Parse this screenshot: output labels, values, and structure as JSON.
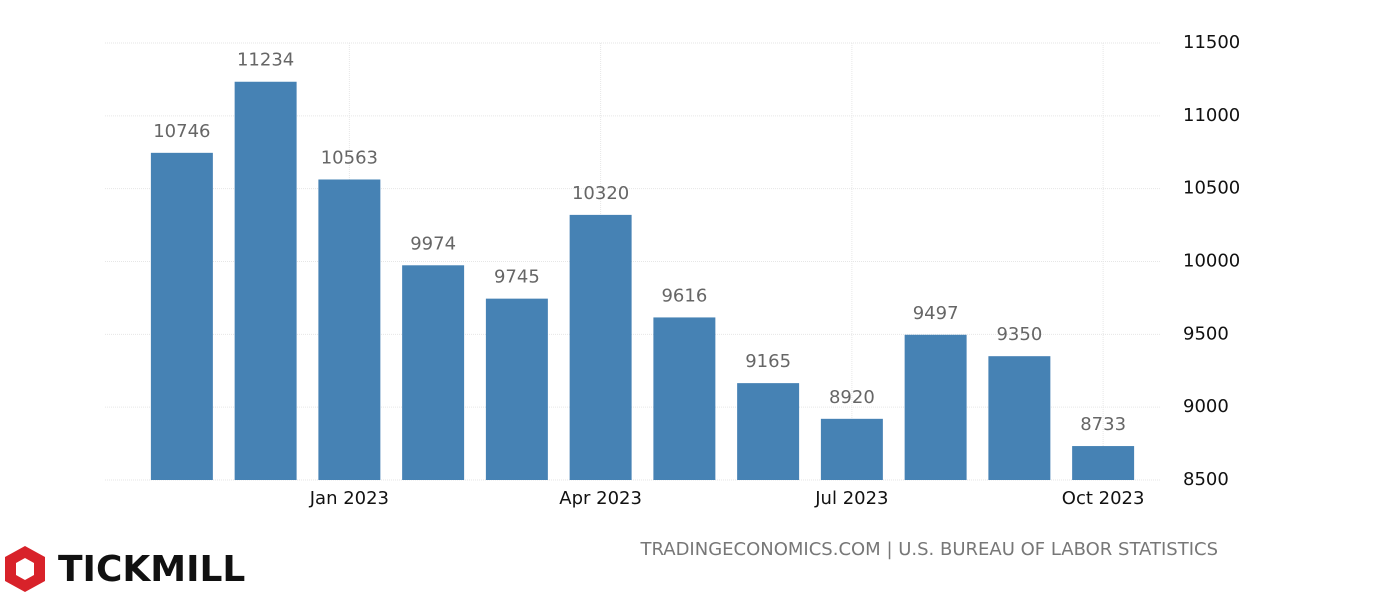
{
  "chart_data": {
    "type": "bar",
    "categories": [
      null,
      null,
      "Jan 2023",
      null,
      null,
      "Apr 2023",
      null,
      null,
      "Jul 2023",
      null,
      null,
      "Oct 2023"
    ],
    "values": [
      10746,
      11234,
      10563,
      9974,
      9745,
      10320,
      9616,
      9165,
      8920,
      9497,
      9350,
      8733
    ],
    "color": "#4682b4",
    "ylim": [
      8500,
      11500
    ],
    "yticks": [
      8500,
      9000,
      9500,
      10000,
      10500,
      11000,
      11500
    ],
    "grid": true,
    "y_axis_side": "right",
    "source": "TRADINGECONOMICS.COM | U.S. BUREAU OF LABOR STATISTICS"
  },
  "brand": "TICKMILL"
}
